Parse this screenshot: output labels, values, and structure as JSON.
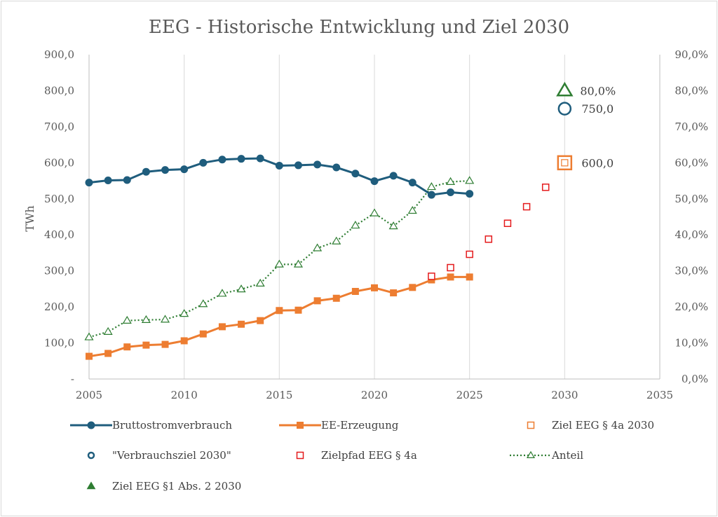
{
  "chart_data": {
    "type": "line",
    "title": "EEG - Historische Entwicklung und Ziel 2030",
    "ylabel": "TWh",
    "xlim": [
      2005,
      2035
    ],
    "ylim": [
      0,
      900
    ],
    "y2lim": [
      0,
      0.9
    ],
    "x_ticks": [
      "2005",
      "2010",
      "2015",
      "2020",
      "2025",
      "2030",
      "2035"
    ],
    "y_ticks": [
      "-",
      "100,0",
      "200,0",
      "300,0",
      "400,0",
      "500,0",
      "600,0",
      "700,0",
      "800,0",
      "900,0"
    ],
    "y2_ticks": [
      "0,0%",
      "10,0%",
      "20,0%",
      "30,0%",
      "40,0%",
      "50,0%",
      "60,0%",
      "70,0%",
      "80,0%",
      "90,0%"
    ],
    "grid": "vertical",
    "legend_position": "bottom",
    "colors": {
      "brutto": "#1f5d7d",
      "ee": "#ed7d31",
      "ziel_4a": "#ed7d31",
      "verbrauchsziel": "#1f5d7d",
      "zielpfad": "#e41a1c",
      "anteil": "#2e7d32",
      "ziel_1": "#2e7d32"
    },
    "series": [
      {
        "key": "brutto",
        "name": "Bruttostromverbrauch",
        "axis": "left",
        "x": [
          2005,
          2006,
          2007,
          2008,
          2009,
          2010,
          2011,
          2012,
          2013,
          2014,
          2015,
          2016,
          2017,
          2018,
          2019,
          2020,
          2021,
          2022,
          2023,
          2024,
          2025
        ],
        "values": [
          545,
          551,
          552,
          575,
          580,
          582,
          600,
          609,
          611,
          612,
          592,
          593,
          595,
          587,
          570,
          549,
          564,
          545,
          511,
          518,
          514
        ]
      },
      {
        "key": "ee",
        "name": "EE-Erzeugung",
        "axis": "left",
        "x": [
          2005,
          2006,
          2007,
          2008,
          2009,
          2010,
          2011,
          2012,
          2013,
          2014,
          2015,
          2016,
          2017,
          2018,
          2019,
          2020,
          2021,
          2022,
          2023,
          2024,
          2025
        ],
        "values": [
          63,
          71,
          89,
          94,
          96,
          106,
          125,
          145,
          152,
          162,
          190,
          191,
          217,
          224,
          243,
          253,
          239,
          254,
          275,
          283,
          283
        ]
      },
      {
        "key": "ziel_4a",
        "name": "Ziel EEG § 4a 2030",
        "axis": "left",
        "x": [
          2030
        ],
        "values": [
          600
        ],
        "label": "600,0"
      },
      {
        "key": "verbrauchsziel",
        "name": "\"Verbrauchsziel 2030\"",
        "axis": "left",
        "x": [
          2030
        ],
        "values": [
          750
        ],
        "label": "750,0"
      },
      {
        "key": "zielpfad",
        "name": "Zielpfad EEG § 4a",
        "axis": "left",
        "x": [
          2023,
          2024,
          2025,
          2026,
          2027,
          2028,
          2029,
          2030
        ],
        "values": [
          285,
          309,
          346,
          388,
          432,
          478,
          532,
          600
        ]
      },
      {
        "key": "anteil",
        "name": "Anteil",
        "axis": "right",
        "x": [
          2005,
          2006,
          2007,
          2008,
          2009,
          2010,
          2011,
          2012,
          2013,
          2014,
          2015,
          2016,
          2017,
          2018,
          2019,
          2020,
          2021,
          2022,
          2023,
          2024,
          2025
        ],
        "values": [
          0.116,
          0.131,
          0.162,
          0.164,
          0.165,
          0.181,
          0.208,
          0.237,
          0.249,
          0.265,
          0.318,
          0.318,
          0.363,
          0.382,
          0.426,
          0.46,
          0.424,
          0.467,
          0.533,
          0.547,
          0.55
        ]
      },
      {
        "key": "ziel_1",
        "name": "Ziel EEG §1 Abs. 2  2030",
        "axis": "right",
        "x": [
          2030
        ],
        "values": [
          0.8
        ],
        "label": "80,0%"
      }
    ],
    "legend": [
      {
        "key": "brutto",
        "label": "Bruttostromverbrauch"
      },
      {
        "key": "ee",
        "label": "EE-Erzeugung"
      },
      {
        "key": "ziel_4a",
        "label": "Ziel EEG § 4a 2030"
      },
      {
        "key": "verbrauchsziel",
        "label": "\"Verbrauchsziel 2030\""
      },
      {
        "key": "zielpfad",
        "label": "Zielpfad EEG § 4a"
      },
      {
        "key": "anteil",
        "label": "Anteil"
      },
      {
        "key": "ziel_1",
        "label": "Ziel EEG §1 Abs. 2  2030"
      }
    ]
  }
}
